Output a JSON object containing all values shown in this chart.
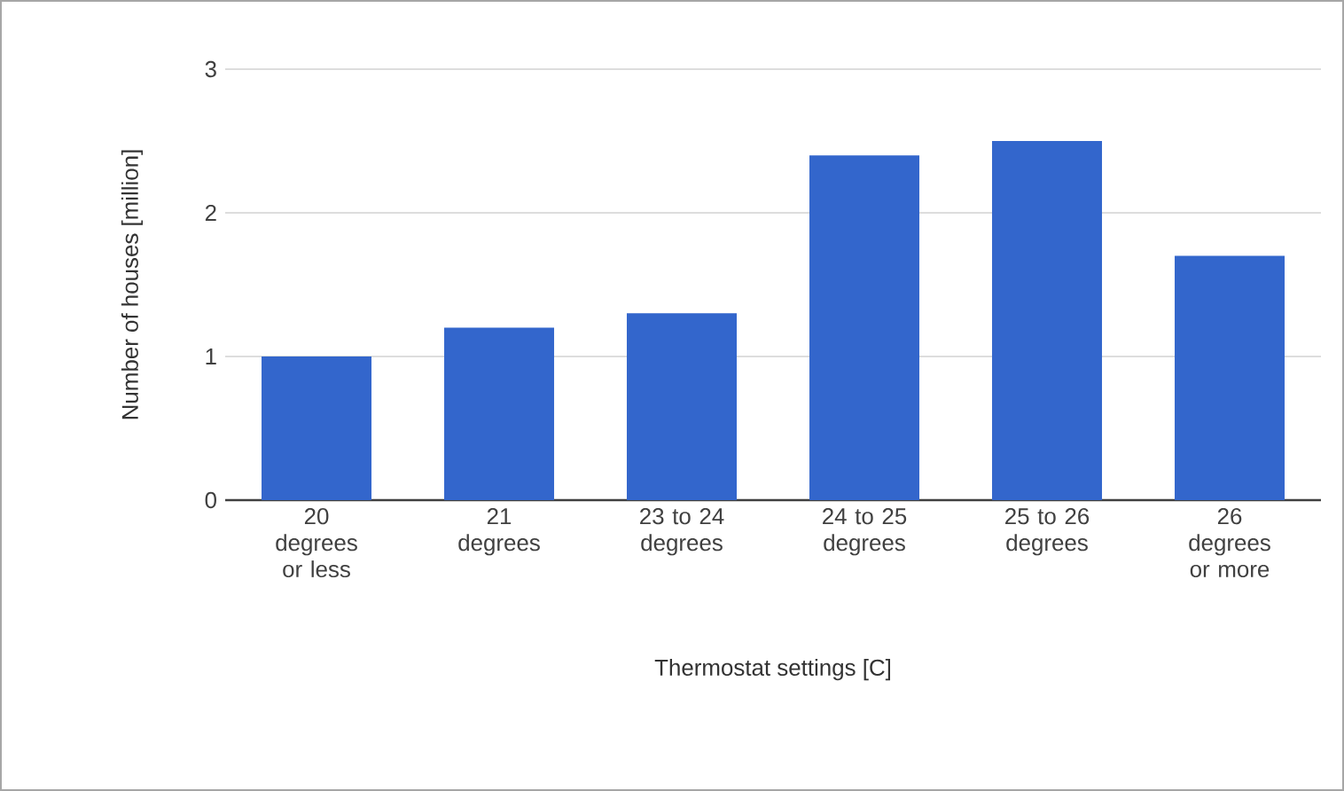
{
  "chart_data": {
    "type": "bar",
    "xlabel": "Thermostat settings [C]",
    "ylabel": "Number of houses [million]",
    "categories": [
      "20 degrees or less",
      "21 degrees",
      "23 to 24 degrees",
      "24 to 25 degrees",
      "25 to 26 degrees",
      "26 degrees or more"
    ],
    "values": [
      1.0,
      1.2,
      1.3,
      2.4,
      2.5,
      1.7
    ],
    "color": "#3366cc",
    "ylim": [
      0,
      3
    ],
    "yticks": [
      0,
      1,
      2,
      3
    ],
    "grid": "y"
  }
}
